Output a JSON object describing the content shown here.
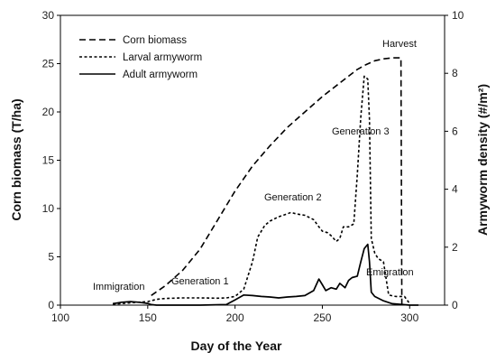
{
  "chart_data": {
    "type": "line",
    "xlabel": "Day of the Year",
    "ylabel_left": "Corn biomass (T/ha)",
    "ylabel_right": "Armyworm density (#/m²)",
    "xlim": [
      100,
      320
    ],
    "ylim_left": [
      0,
      30
    ],
    "ylim_right": [
      0,
      10
    ],
    "x_ticks": [
      "100",
      "150",
      "200",
      "250",
      "300"
    ],
    "y_left_ticks": [
      "0",
      "5",
      "10",
      "15",
      "20",
      "25",
      "30"
    ],
    "y_right_ticks": [
      "0",
      "2",
      "4",
      "6",
      "8",
      "10"
    ],
    "grid": false,
    "legend_position": "top-left",
    "series": [
      {
        "name": "Corn biomass",
        "axis": "left",
        "style": "long-dash",
        "x": [
          152,
          160,
          170,
          180,
          190,
          200,
          210,
          220,
          230,
          240,
          250,
          260,
          270,
          275,
          280,
          285,
          290,
          295,
          295.5
        ],
        "y": [
          1.0,
          2.0,
          3.6,
          5.8,
          8.8,
          11.8,
          14.4,
          16.5,
          18.4,
          20.0,
          21.6,
          23.0,
          24.4,
          24.9,
          25.3,
          25.5,
          25.6,
          25.6,
          0
        ]
      },
      {
        "name": "Larval armyworm",
        "axis": "right",
        "style": "short-dash",
        "x": [
          130,
          140,
          150,
          155,
          160,
          170,
          180,
          190,
          195,
          200,
          205,
          210,
          213,
          217,
          220,
          225,
          230,
          232,
          235,
          240,
          245,
          248,
          250,
          253,
          255,
          258,
          260,
          262,
          265,
          268,
          270,
          272,
          274,
          276,
          277,
          278,
          280,
          282,
          285,
          288,
          292,
          297,
          300
        ],
        "y": [
          0.03,
          0.08,
          0.12,
          0.2,
          0.23,
          0.25,
          0.25,
          0.24,
          0.25,
          0.3,
          0.55,
          1.5,
          2.35,
          2.75,
          2.9,
          3.05,
          3.15,
          3.2,
          3.15,
          3.1,
          2.95,
          2.7,
          2.55,
          2.5,
          2.4,
          2.2,
          2.3,
          2.7,
          2.7,
          2.8,
          4.5,
          6.5,
          7.9,
          7.8,
          6.4,
          2.3,
          1.8,
          1.6,
          1.5,
          0.35,
          0.3,
          0.3,
          0.05
        ]
      },
      {
        "name": "Adult armyworm",
        "axis": "right",
        "style": "solid",
        "x": [
          130,
          135,
          140,
          145,
          150,
          152,
          155,
          180,
          195,
          200,
          205,
          210,
          215,
          220,
          225,
          230,
          235,
          240,
          245,
          248,
          250,
          252,
          255,
          258,
          260,
          263,
          265,
          267,
          270,
          272,
          274,
          276,
          277,
          278,
          280,
          285,
          290,
          300,
          305
        ],
        "y": [
          0.05,
          0.1,
          0.12,
          0.1,
          0.06,
          0.02,
          0.0,
          0.0,
          0.02,
          0.18,
          0.35,
          0.33,
          0.3,
          0.28,
          0.25,
          0.28,
          0.3,
          0.33,
          0.5,
          0.9,
          0.7,
          0.5,
          0.6,
          0.55,
          0.75,
          0.6,
          0.85,
          0.95,
          1.0,
          1.5,
          1.95,
          2.1,
          1.5,
          0.45,
          0.3,
          0.15,
          0.05,
          0.0,
          0.0
        ]
      }
    ],
    "annotations": [
      "Harvest",
      "Generation 3",
      "Generation 2",
      "Generation 1",
      "Immigration",
      "Emigration"
    ]
  }
}
